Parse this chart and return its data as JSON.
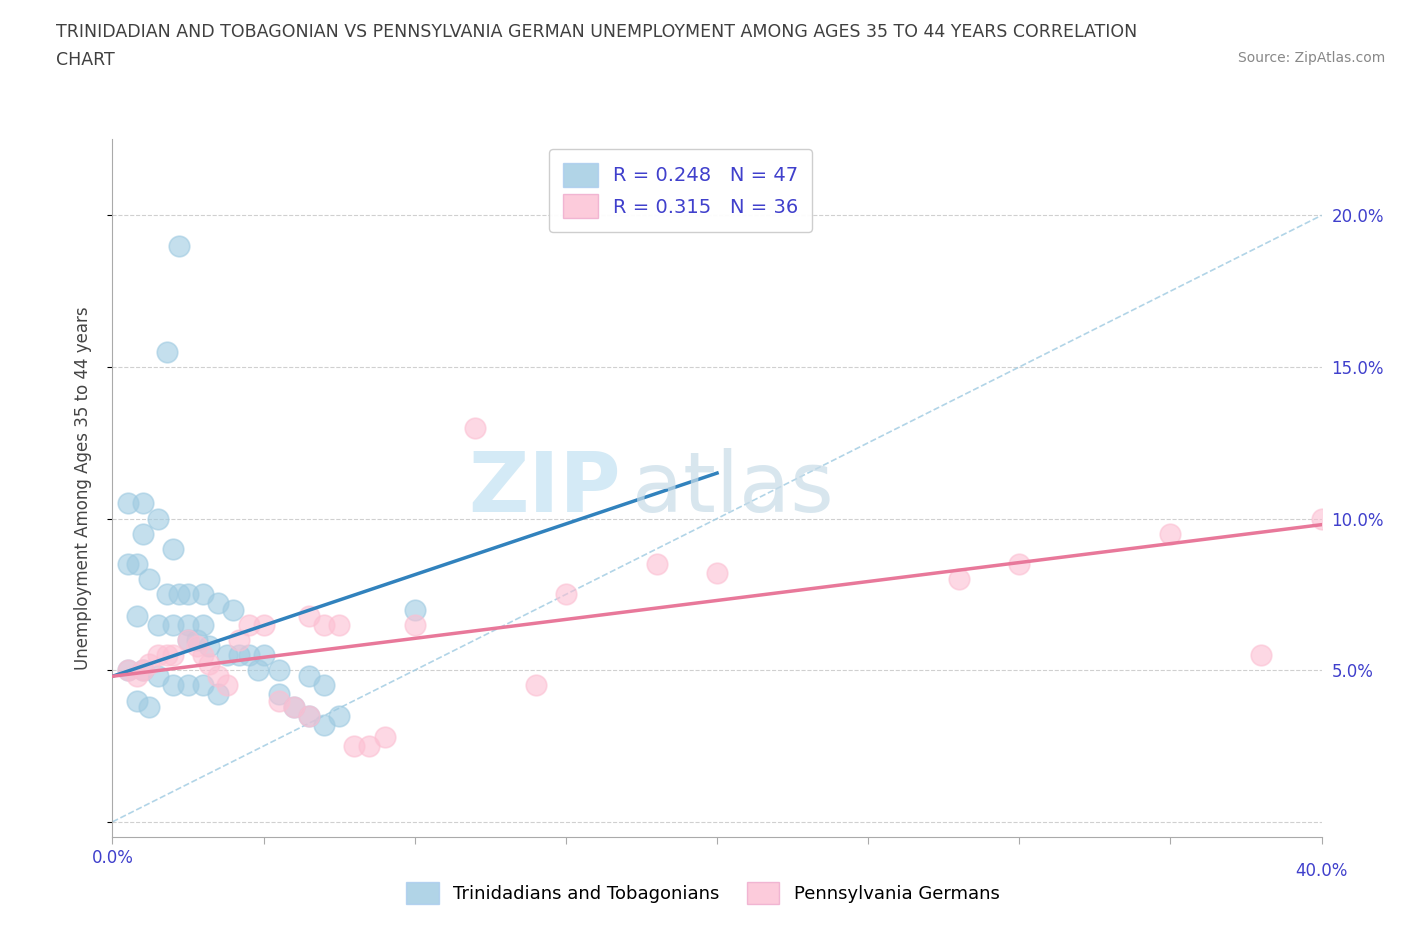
{
  "title_line1": "TRINIDADIAN AND TOBAGONIAN VS PENNSYLVANIA GERMAN UNEMPLOYMENT AMONG AGES 35 TO 44 YEARS CORRELATION",
  "title_line2": "CHART",
  "source_text": "Source: ZipAtlas.com",
  "ylabel": "Unemployment Among Ages 35 to 44 years",
  "r_blue": 0.248,
  "n_blue": 47,
  "r_pink": 0.315,
  "n_pink": 36,
  "color_blue": "#9ecae1",
  "color_pink": "#fcbfd2",
  "color_blue_line": "#3182bd",
  "color_pink_line": "#e8789a",
  "color_dashed": "#9ecae1",
  "title_color": "#5a5a8a",
  "label_color": "#4040cc",
  "watermark_zip": "ZIP",
  "watermark_atlas": "atlas",
  "xlim": [
    0.0,
    0.4
  ],
  "ylim": [
    -0.005,
    0.225
  ],
  "x_ticks": [
    0.0,
    0.05,
    0.1,
    0.15,
    0.2,
    0.25,
    0.3,
    0.35,
    0.4
  ],
  "y_ticks": [
    0.0,
    0.05,
    0.1,
    0.15,
    0.2
  ],
  "y_tick_labels": [
    "",
    "5.0%",
    "10.0%",
    "15.0%",
    "20.0%"
  ],
  "grid_color": "#d0d0d0",
  "background_color": "#ffffff",
  "blue_points_x": [
    0.022,
    0.018,
    0.005,
    0.01,
    0.015,
    0.01,
    0.02,
    0.005,
    0.008,
    0.012,
    0.018,
    0.022,
    0.025,
    0.03,
    0.035,
    0.04,
    0.008,
    0.015,
    0.02,
    0.025,
    0.03,
    0.025,
    0.028,
    0.032,
    0.038,
    0.042,
    0.045,
    0.05,
    0.005,
    0.01,
    0.015,
    0.02,
    0.025,
    0.03,
    0.035,
    0.008,
    0.012,
    0.048,
    0.055,
    0.065,
    0.07,
    0.055,
    0.06,
    0.065,
    0.07,
    0.075,
    0.1
  ],
  "blue_points_y": [
    0.19,
    0.155,
    0.105,
    0.105,
    0.1,
    0.095,
    0.09,
    0.085,
    0.085,
    0.08,
    0.075,
    0.075,
    0.075,
    0.075,
    0.072,
    0.07,
    0.068,
    0.065,
    0.065,
    0.065,
    0.065,
    0.06,
    0.06,
    0.058,
    0.055,
    0.055,
    0.055,
    0.055,
    0.05,
    0.05,
    0.048,
    0.045,
    0.045,
    0.045,
    0.042,
    0.04,
    0.038,
    0.05,
    0.05,
    0.048,
    0.045,
    0.042,
    0.038,
    0.035,
    0.032,
    0.035,
    0.07
  ],
  "pink_points_x": [
    0.005,
    0.008,
    0.01,
    0.012,
    0.015,
    0.018,
    0.02,
    0.025,
    0.028,
    0.03,
    0.032,
    0.035,
    0.038,
    0.042,
    0.045,
    0.05,
    0.055,
    0.06,
    0.065,
    0.065,
    0.07,
    0.075,
    0.08,
    0.085,
    0.09,
    0.1,
    0.12,
    0.14,
    0.15,
    0.18,
    0.2,
    0.28,
    0.3,
    0.35,
    0.38,
    0.4
  ],
  "pink_points_y": [
    0.05,
    0.048,
    0.05,
    0.052,
    0.055,
    0.055,
    0.055,
    0.06,
    0.058,
    0.055,
    0.052,
    0.048,
    0.045,
    0.06,
    0.065,
    0.065,
    0.04,
    0.038,
    0.035,
    0.068,
    0.065,
    0.065,
    0.025,
    0.025,
    0.028,
    0.065,
    0.13,
    0.045,
    0.075,
    0.085,
    0.082,
    0.08,
    0.085,
    0.095,
    0.055,
    0.1
  ],
  "blue_trend_x": [
    0.0,
    0.2
  ],
  "blue_trend_y": [
    0.048,
    0.115
  ],
  "pink_trend_x": [
    0.0,
    0.4
  ],
  "pink_trend_y": [
    0.048,
    0.098
  ],
  "dash_line_x": [
    0.0,
    0.4
  ],
  "dash_line_y": [
    0.0,
    0.2
  ],
  "legend_label_blue": "Trinidadians and Tobagonians",
  "legend_label_pink": "Pennsylvania Germans"
}
